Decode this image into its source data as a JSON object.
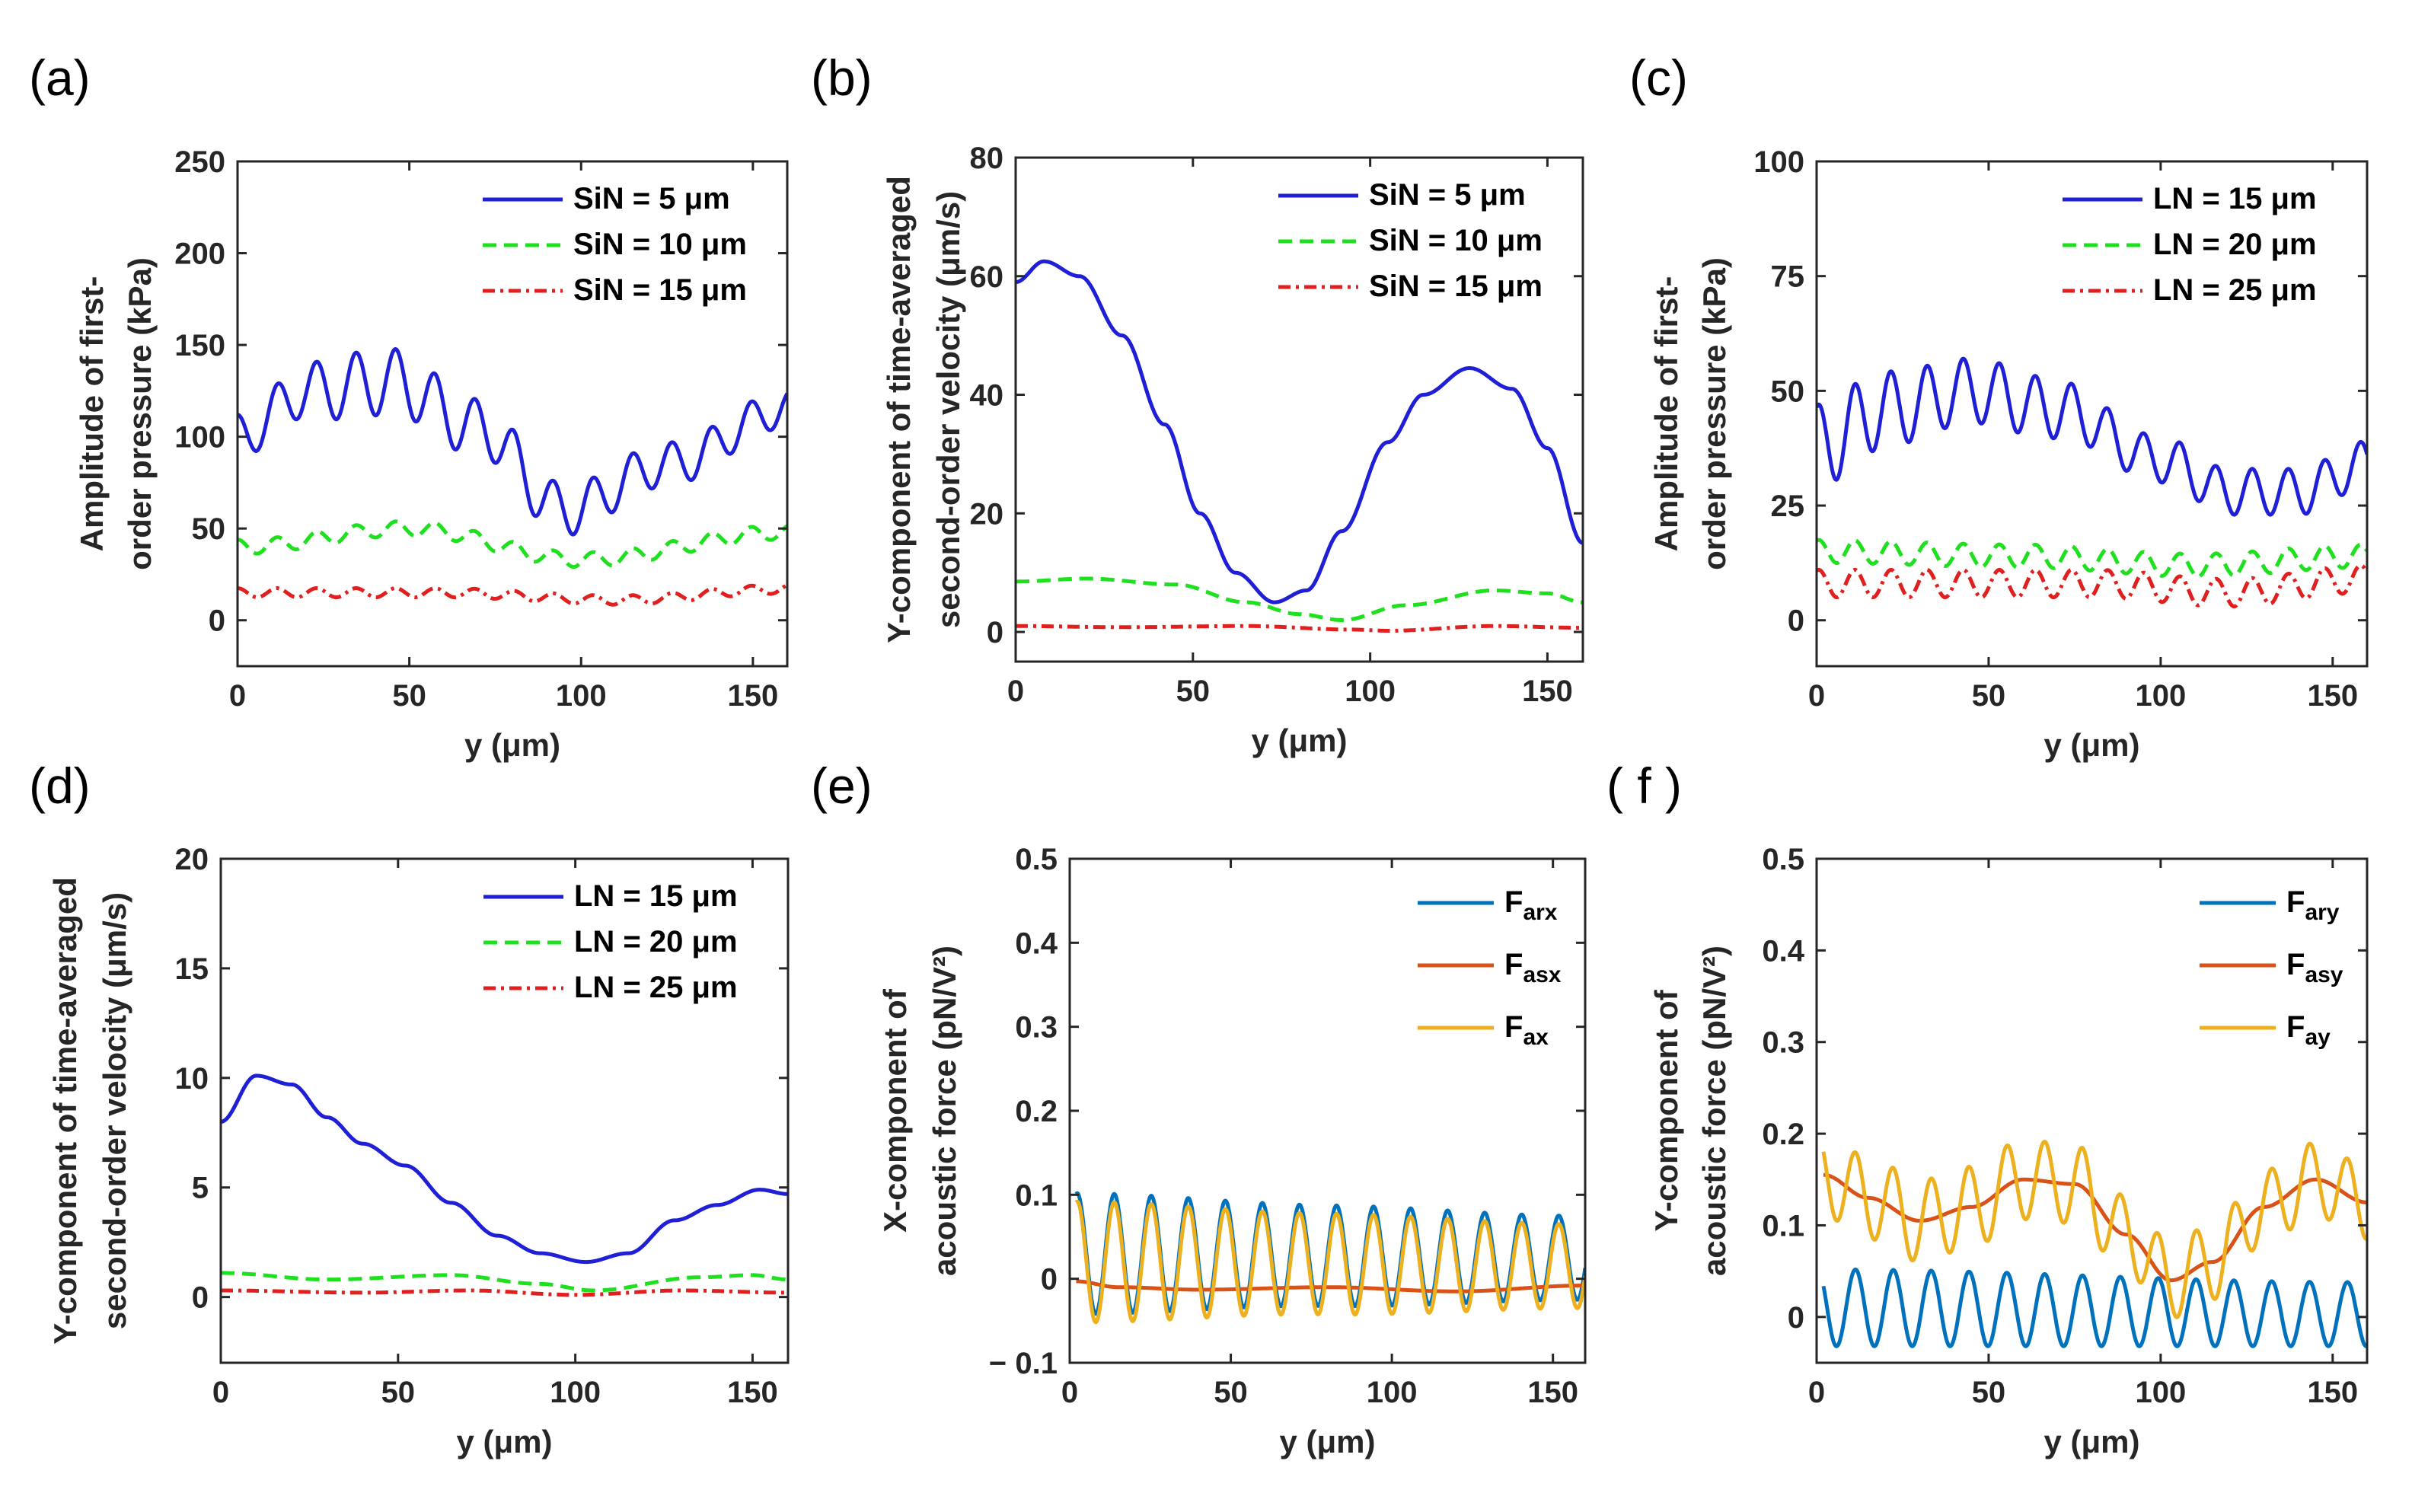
{
  "colors": {
    "blue": "#1f1fd6",
    "green": "#1fe01f",
    "red": "#e0201f",
    "mat_blue": "#0072bd",
    "mat_orange": "#d95319",
    "mat_yellow": "#edb120"
  },
  "chart_data": [
    {
      "id": "a",
      "type": "line",
      "panel_label": "(a)",
      "xlabel": "y (μm)",
      "ylabel": [
        "Amplitude of first-",
        "order pressure (kPa)"
      ],
      "xlim": [
        0,
        160
      ],
      "ylim": [
        -25,
        250
      ],
      "xticks": [
        0,
        50,
        100,
        150
      ],
      "yticks": [
        0,
        50,
        100,
        150,
        200,
        250
      ],
      "legend": {
        "position": "top-right"
      },
      "series": [
        {
          "name": "SiN = 5 μm",
          "style": "solid",
          "color": "#1f1fd6",
          "kind": "osc",
          "base": [
            [
              0,
              100
            ],
            [
              20,
              125
            ],
            [
              45,
              130
            ],
            [
              70,
              105
            ],
            [
              95,
              60
            ],
            [
              125,
              85
            ],
            [
              160,
              115
            ]
          ],
          "amp": [
            [
              0,
              12
            ],
            [
              40,
              18
            ],
            [
              80,
              15
            ],
            [
              120,
              12
            ],
            [
              160,
              10
            ]
          ],
          "period": 11.5,
          "phase": 1.57
        },
        {
          "name": "SiN = 10 μm",
          "style": "dash",
          "color": "#1fe01f",
          "kind": "osc",
          "base": [
            [
              0,
              40
            ],
            [
              50,
              50
            ],
            [
              100,
              33
            ],
            [
              160,
              48
            ]
          ],
          "amp": [
            [
              0,
              4
            ],
            [
              160,
              4
            ]
          ],
          "period": 11.5,
          "phase": 1.57
        },
        {
          "name": "SiN = 15 μm",
          "style": "dashdot",
          "color": "#e0201f",
          "kind": "osc",
          "base": [
            [
              0,
              15
            ],
            [
              60,
              15
            ],
            [
              110,
              11
            ],
            [
              160,
              17
            ]
          ],
          "amp": [
            [
              0,
              2.5
            ],
            [
              160,
              2.5
            ]
          ],
          "period": 11.5,
          "phase": 1.57
        }
      ]
    },
    {
      "id": "b",
      "type": "line",
      "panel_label": "(b)",
      "xlabel": "y (μm)",
      "ylabel": [
        "Y-component of time-averaged",
        "second-order velocity (μm/s)"
      ],
      "xlim": [
        0,
        160
      ],
      "ylim": [
        -5,
        80
      ],
      "xticks": [
        0,
        50,
        100,
        150
      ],
      "yticks": [
        0,
        20,
        40,
        60,
        80
      ],
      "legend": {
        "position": "top-right"
      },
      "series": [
        {
          "name": "SiN = 5 μm",
          "style": "solid",
          "color": "#1f1fd6",
          "kind": "smooth",
          "pts": [
            [
              0,
              59
            ],
            [
              8,
              62.5
            ],
            [
              18,
              60
            ],
            [
              30,
              50
            ],
            [
              42,
              35
            ],
            [
              52,
              20
            ],
            [
              62,
              10
            ],
            [
              73,
              5
            ],
            [
              82,
              7
            ],
            [
              92,
              17
            ],
            [
              105,
              32
            ],
            [
              115,
              40
            ],
            [
              128,
              44.5
            ],
            [
              140,
              41
            ],
            [
              150,
              31
            ],
            [
              160,
              15
            ]
          ]
        },
        {
          "name": "SiN = 10 μm",
          "style": "dash",
          "color": "#1fe01f",
          "kind": "smooth",
          "pts": [
            [
              0,
              8.5
            ],
            [
              20,
              9
            ],
            [
              45,
              8
            ],
            [
              65,
              5
            ],
            [
              80,
              3
            ],
            [
              92,
              2
            ],
            [
              110,
              4.5
            ],
            [
              135,
              7
            ],
            [
              150,
              6.5
            ],
            [
              160,
              5
            ]
          ]
        },
        {
          "name": "SiN = 15 μm",
          "style": "dashdot",
          "color": "#e0201f",
          "kind": "smooth",
          "pts": [
            [
              0,
              1
            ],
            [
              30,
              0.8
            ],
            [
              65,
              1
            ],
            [
              95,
              0.4
            ],
            [
              105,
              0.2
            ],
            [
              135,
              1
            ],
            [
              160,
              0.7
            ]
          ]
        }
      ]
    },
    {
      "id": "c",
      "type": "line",
      "panel_label": "(c)",
      "xlabel": "y (μm)",
      "ylabel": [
        "Amplitude of first-",
        "order pressure (kPa)"
      ],
      "xlim": [
        0,
        160
      ],
      "ylim": [
        -10,
        100
      ],
      "xticks": [
        0,
        50,
        100,
        150
      ],
      "yticks": [
        0,
        25,
        50,
        75,
        100
      ],
      "legend": {
        "position": "top-right"
      },
      "series": [
        {
          "name": "LN = 15 μm",
          "style": "solid",
          "color": "#1f1fd6",
          "kind": "osc",
          "base": [
            [
              0,
              38
            ],
            [
              20,
              46
            ],
            [
              45,
              50
            ],
            [
              70,
              46
            ],
            [
              100,
              35
            ],
            [
              120,
              28
            ],
            [
              140,
              28
            ],
            [
              160,
              34
            ]
          ],
          "amp": [
            [
              0,
              9
            ],
            [
              50,
              7
            ],
            [
              100,
              5
            ],
            [
              160,
              5
            ]
          ],
          "period": 10.5,
          "phase": 1.2
        },
        {
          "name": "LN = 20 μm",
          "style": "dash",
          "color": "#1fe01f",
          "kind": "osc",
          "base": [
            [
              0,
              15
            ],
            [
              60,
              14
            ],
            [
              110,
              12
            ],
            [
              160,
              14
            ]
          ],
          "amp": [
            [
              0,
              2.5
            ],
            [
              160,
              2.5
            ]
          ],
          "period": 10.5,
          "phase": 1.2
        },
        {
          "name": "LN = 25 μm",
          "style": "dashdot",
          "color": "#e0201f",
          "kind": "osc",
          "base": [
            [
              0,
              8
            ],
            [
              80,
              8
            ],
            [
              120,
              6
            ],
            [
              160,
              9
            ]
          ],
          "amp": [
            [
              0,
              3
            ],
            [
              160,
              3
            ]
          ],
          "period": 10.5,
          "phase": 1.2
        }
      ]
    },
    {
      "id": "d",
      "type": "line",
      "panel_label": "(d)",
      "xlabel": "y (μm)",
      "ylabel": [
        "Y-component of time-averaged",
        "second-order velocity (μm/s)"
      ],
      "xlim": [
        0,
        160
      ],
      "ylim": [
        -3,
        20
      ],
      "xticks": [
        0,
        50,
        100,
        150
      ],
      "yticks": [
        0,
        5,
        10,
        15,
        20
      ],
      "legend": {
        "position": "top-right"
      },
      "series": [
        {
          "name": "LN = 15 μm",
          "style": "solid",
          "color": "#1f1fd6",
          "kind": "smooth",
          "pts": [
            [
              0,
              8
            ],
            [
              10,
              10.1
            ],
            [
              20,
              9.7
            ],
            [
              30,
              8.2
            ],
            [
              40,
              7
            ],
            [
              52,
              6
            ],
            [
              65,
              4.3
            ],
            [
              78,
              2.8
            ],
            [
              90,
              2
            ],
            [
              103,
              1.6
            ],
            [
              115,
              2
            ],
            [
              128,
              3.5
            ],
            [
              140,
              4.2
            ],
            [
              152,
              4.9
            ],
            [
              160,
              4.7
            ]
          ]
        },
        {
          "name": "LN = 20 μm",
          "style": "dash",
          "color": "#1fe01f",
          "kind": "smooth",
          "pts": [
            [
              0,
              1.1
            ],
            [
              30,
              0.8
            ],
            [
              65,
              1
            ],
            [
              90,
              0.6
            ],
            [
              105,
              0.3
            ],
            [
              135,
              0.9
            ],
            [
              150,
              1
            ],
            [
              160,
              0.8
            ]
          ]
        },
        {
          "name": "LN = 25 μm",
          "style": "dashdot",
          "color": "#e0201f",
          "kind": "smooth",
          "pts": [
            [
              0,
              0.3
            ],
            [
              40,
              0.2
            ],
            [
              70,
              0.3
            ],
            [
              100,
              0.1
            ],
            [
              130,
              0.3
            ],
            [
              160,
              0.2
            ]
          ]
        }
      ]
    },
    {
      "id": "e",
      "type": "line",
      "panel_label": "(e)",
      "xlabel": "y (μm)",
      "ylabel": [
        "X-component of",
        "acoustic force (pN/V²)"
      ],
      "xlim": [
        0,
        160
      ],
      "ylim": [
        -0.1,
        0.5
      ],
      "xticks": [
        0,
        50,
        100,
        150
      ],
      "yticks": [
        -0.1,
        0,
        0.1,
        0.2,
        0.3,
        0.4,
        0.5
      ],
      "ytick_labels": [
        "− 0.1",
        "0",
        "0.1",
        "0.2",
        "0.3",
        "0.4",
        "0.5"
      ],
      "legend": {
        "position": "top-right"
      },
      "series": [
        {
          "name": "F",
          "sub": "arx",
          "style": "solid",
          "color": "#0072bd",
          "kind": "osc",
          "xstart": 2,
          "base": [
            [
              0,
              0.03
            ],
            [
              160,
              0.025
            ]
          ],
          "amp": [
            [
              0,
              0.072
            ],
            [
              80,
              0.06
            ],
            [
              160,
              0.05
            ]
          ],
          "period": 11.5,
          "phase": 0.3
        },
        {
          "name": "F",
          "sub": "asx",
          "style": "solid",
          "color": "#d95319",
          "kind": "smooth",
          "xstart": 2,
          "pts": [
            [
              2,
              -0.003
            ],
            [
              15,
              -0.01
            ],
            [
              40,
              -0.013
            ],
            [
              80,
              -0.01
            ],
            [
              120,
              -0.015
            ],
            [
              160,
              -0.008
            ]
          ]
        },
        {
          "name": "F",
          "sub": "ax",
          "style": "solid",
          "color": "#edb120",
          "kind": "osc",
          "xstart": 2,
          "base": [
            [
              0,
              0.02
            ],
            [
              160,
              0.015
            ]
          ],
          "amp": [
            [
              0,
              0.072
            ],
            [
              80,
              0.06
            ],
            [
              160,
              0.05
            ]
          ],
          "period": 11.5,
          "phase": 0.3
        }
      ]
    },
    {
      "id": "f",
      "type": "line",
      "panel_label": "( f )",
      "xlabel": "y (μm)",
      "ylabel": [
        "Y-component of",
        "acoustic force (pN/V²)"
      ],
      "xlim": [
        0,
        160
      ],
      "ylim": [
        -0.05,
        0.5
      ],
      "xticks": [
        0,
        50,
        100,
        150
      ],
      "yticks": [
        0,
        0.1,
        0.2,
        0.3,
        0.4,
        0.5
      ],
      "legend": {
        "position": "top-right"
      },
      "series": [
        {
          "name": "F",
          "sub": "ary",
          "style": "solid",
          "color": "#0072bd",
          "kind": "osc",
          "xstart": 2,
          "base": [
            [
              0,
              0.01
            ],
            [
              160,
              0.003
            ]
          ],
          "amp": [
            [
              0,
              0.042
            ],
            [
              160,
              0.035
            ]
          ],
          "period": 11,
          "phase": 1.4
        },
        {
          "name": "F",
          "sub": "asy",
          "style": "solid",
          "color": "#d95319",
          "kind": "smooth",
          "xstart": 2,
          "pts": [
            [
              2,
              0.155
            ],
            [
              15,
              0.13
            ],
            [
              30,
              0.105
            ],
            [
              45,
              0.12
            ],
            [
              60,
              0.15
            ],
            [
              75,
              0.145
            ],
            [
              90,
              0.09
            ],
            [
              103,
              0.04
            ],
            [
              115,
              0.06
            ],
            [
              130,
              0.12
            ],
            [
              145,
              0.15
            ],
            [
              160,
              0.125
            ]
          ]
        },
        {
          "name": "F",
          "sub": "ay",
          "style": "solid",
          "color": "#edb120",
          "kind": "osc",
          "xstart": 2,
          "base": [
            [
              2,
              0.155
            ],
            [
              15,
              0.13
            ],
            [
              30,
              0.105
            ],
            [
              45,
              0.12
            ],
            [
              60,
              0.15
            ],
            [
              75,
              0.145
            ],
            [
              90,
              0.09
            ],
            [
              103,
              0.04
            ],
            [
              115,
              0.06
            ],
            [
              130,
              0.12
            ],
            [
              145,
              0.15
            ],
            [
              160,
              0.125
            ]
          ],
          "amp": [
            [
              0,
              0.045
            ],
            [
              160,
              0.04
            ]
          ],
          "period": 11,
          "phase": 1.4
        }
      ]
    }
  ]
}
